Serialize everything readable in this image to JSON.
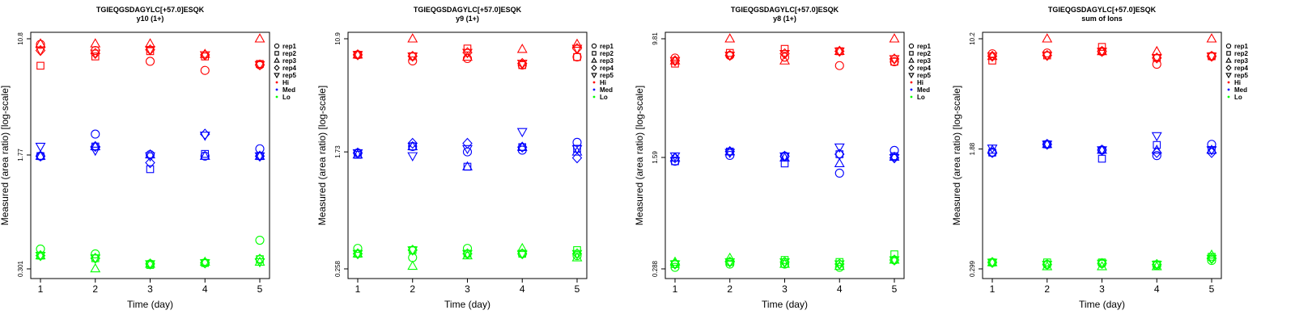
{
  "chart_data": [
    {
      "type": "scatter",
      "title": "TGIEQGSDAGYLC[+57.0]ESQK",
      "subtitle": "y10 (1+)",
      "xlabel": "Time (day)",
      "ylabel": "Measured (area ratio) [log-scale]",
      "x": [
        1,
        2,
        3,
        4,
        5
      ],
      "xticks": [
        "1",
        "2",
        "3",
        "4",
        "5"
      ],
      "yscale": "log",
      "ylim": [
        0.301,
        10.8
      ],
      "yticks": [
        "0.301",
        "1.77",
        "10.8"
      ],
      "yticks_values": [
        0.301,
        1.77,
        10.8
      ],
      "legend_position": "right",
      "series": [
        {
          "group": "Hi",
          "color": "#ff0000",
          "rep": "rep1",
          "values": [
            9.9,
            9.0,
            7.6,
            6.6,
            7.2
          ]
        },
        {
          "group": "Hi",
          "color": "#ff0000",
          "rep": "rep2",
          "values": [
            7.1,
            8.2,
            8.9,
            8.2,
            7.3
          ]
        },
        {
          "group": "Hi",
          "color": "#ff0000",
          "rep": "rep3",
          "values": [
            10.0,
            10.0,
            10.0,
            8.5,
            10.8
          ]
        },
        {
          "group": "Hi",
          "color": "#ff0000",
          "rep": "rep4",
          "values": [
            9.0,
            8.6,
            9.1,
            8.4,
            7.2
          ]
        },
        {
          "group": "Hi",
          "color": "#ff0000",
          "rep": "rep5",
          "values": [
            9.0,
            8.6,
            9.1,
            8.4,
            7.2
          ]
        },
        {
          "group": "Med",
          "color": "#0000ff",
          "rep": "rep1",
          "values": [
            1.74,
            2.45,
            1.78,
            1.74,
            1.95
          ]
        },
        {
          "group": "Med",
          "color": "#0000ff",
          "rep": "rep2",
          "values": [
            1.74,
            2.02,
            1.42,
            1.8,
            1.74
          ]
        },
        {
          "group": "Med",
          "color": "#0000ff",
          "rep": "rep3",
          "values": [
            1.74,
            2.02,
            1.78,
            1.74,
            1.74
          ]
        },
        {
          "group": "Med",
          "color": "#0000ff",
          "rep": "rep4",
          "values": [
            1.74,
            2.02,
            1.57,
            2.45,
            1.74
          ]
        },
        {
          "group": "Med",
          "color": "#0000ff",
          "rep": "rep5",
          "values": [
            2.02,
            1.9,
            1.74,
            2.4,
            1.74
          ]
        },
        {
          "group": "Lo",
          "color": "#00ff00",
          "rep": "rep1",
          "values": [
            0.41,
            0.38,
            0.325,
            0.33,
            0.47
          ]
        },
        {
          "group": "Lo",
          "color": "#00ff00",
          "rep": "rep2",
          "values": [
            0.37,
            0.355,
            0.32,
            0.33,
            0.35
          ]
        },
        {
          "group": "Lo",
          "color": "#00ff00",
          "rep": "rep3",
          "values": [
            0.37,
            0.302,
            0.325,
            0.335,
            0.335
          ]
        },
        {
          "group": "Lo",
          "color": "#00ff00",
          "rep": "rep4",
          "values": [
            0.37,
            0.355,
            0.325,
            0.33,
            0.35
          ]
        },
        {
          "group": "Lo",
          "color": "#00ff00",
          "rep": "rep5",
          "values": [
            0.37,
            0.355,
            0.325,
            0.33,
            0.335
          ]
        }
      ]
    },
    {
      "type": "scatter",
      "title": "TGIEQGSDAGYLC[+57.0]ESQK",
      "subtitle": "y9 (1+)",
      "xlabel": "Time (day)",
      "ylabel": "Measured (area ratio) [log-scale]",
      "x": [
        1,
        2,
        3,
        4,
        5
      ],
      "xticks": [
        "1",
        "2",
        "3",
        "4",
        "5"
      ],
      "yscale": "log",
      "ylim": [
        0.258,
        10.9
      ],
      "yticks": [
        "0.258",
        "1.73",
        "10.9"
      ],
      "yticks_values": [
        0.258,
        1.73,
        10.9
      ],
      "legend_position": "right",
      "series": [
        {
          "group": "Hi",
          "color": "#ff0000",
          "rep": "rep1",
          "values": [
            8.4,
            7.6,
            7.9,
            7.1,
            8.1
          ]
        },
        {
          "group": "Hi",
          "color": "#ff0000",
          "rep": "rep2",
          "values": [
            8.4,
            8.2,
            9.3,
            7.1,
            8.1
          ]
        },
        {
          "group": "Hi",
          "color": "#ff0000",
          "rep": "rep3",
          "values": [
            8.4,
            10.9,
            8.1,
            9.2,
            10.0
          ]
        },
        {
          "group": "Hi",
          "color": "#ff0000",
          "rep": "rep4",
          "values": [
            8.4,
            8.2,
            8.7,
            7.3,
            9.3
          ]
        },
        {
          "group": "Hi",
          "color": "#ff0000",
          "rep": "rep5",
          "values": [
            8.4,
            8.2,
            8.7,
            7.3,
            9.3
          ]
        },
        {
          "group": "Med",
          "color": "#0000ff",
          "rep": "rep1",
          "values": [
            1.7,
            1.89,
            1.73,
            1.78,
            2.02
          ]
        },
        {
          "group": "Med",
          "color": "#0000ff",
          "rep": "rep2",
          "values": [
            1.65,
            1.89,
            1.36,
            1.87,
            1.82
          ]
        },
        {
          "group": "Med",
          "color": "#0000ff",
          "rep": "rep3",
          "values": [
            1.65,
            1.89,
            1.36,
            1.87,
            1.73
          ]
        },
        {
          "group": "Med",
          "color": "#0000ff",
          "rep": "rep4",
          "values": [
            1.7,
            1.99,
            1.99,
            1.87,
            1.57
          ]
        },
        {
          "group": "Med",
          "color": "#0000ff",
          "rep": "rep5",
          "values": [
            1.7,
            1.62,
            1.82,
            2.4,
            1.82
          ]
        },
        {
          "group": "Lo",
          "color": "#00ff00",
          "rep": "rep1",
          "values": [
            0.36,
            0.31,
            0.36,
            0.33,
            0.32
          ]
        },
        {
          "group": "Lo",
          "color": "#00ff00",
          "rep": "rep2",
          "values": [
            0.33,
            0.35,
            0.33,
            0.33,
            0.35
          ]
        },
        {
          "group": "Lo",
          "color": "#00ff00",
          "rep": "rep3",
          "values": [
            0.33,
            0.27,
            0.32,
            0.36,
            0.31
          ]
        },
        {
          "group": "Lo",
          "color": "#00ff00",
          "rep": "rep4",
          "values": [
            0.33,
            0.35,
            0.33,
            0.33,
            0.33
          ]
        },
        {
          "group": "Lo",
          "color": "#00ff00",
          "rep": "rep5",
          "values": [
            0.33,
            0.35,
            0.33,
            0.33,
            0.33
          ]
        }
      ]
    },
    {
      "type": "scatter",
      "title": "TGIEQGSDAGYLC[+57.0]ESQK",
      "subtitle": "y8 (1+)",
      "xlabel": "Time (day)",
      "ylabel": "Measured (area ratio) [log-scale]",
      "x": [
        1,
        2,
        3,
        4,
        5
      ],
      "xticks": [
        "1",
        "2",
        "3",
        "4",
        "5"
      ],
      "yscale": "log",
      "ylim": [
        0.288,
        9.81
      ],
      "yticks": [
        "0.288",
        "1.59",
        "9.81"
      ],
      "yticks_values": [
        0.288,
        1.59,
        9.81
      ],
      "legend_position": "right",
      "series": [
        {
          "group": "Hi",
          "color": "#ff0000",
          "rep": "rep1",
          "values": [
            7.3,
            7.6,
            7.4,
            6.5,
            6.9
          ]
        },
        {
          "group": "Hi",
          "color": "#ff0000",
          "rep": "rep2",
          "values": [
            6.7,
            7.9,
            8.4,
            8.1,
            6.9
          ]
        },
        {
          "group": "Hi",
          "color": "#ff0000",
          "rep": "rep3",
          "values": [
            7.0,
            9.81,
            7.0,
            8.1,
            9.81
          ]
        },
        {
          "group": "Hi",
          "color": "#ff0000",
          "rep": "rep4",
          "values": [
            7.0,
            7.6,
            7.8,
            8.1,
            7.2
          ]
        },
        {
          "group": "Hi",
          "color": "#ff0000",
          "rep": "rep5",
          "values": [
            7.0,
            7.6,
            7.8,
            8.1,
            7.2
          ]
        },
        {
          "group": "Med",
          "color": "#0000ff",
          "rep": "rep1",
          "values": [
            1.5,
            1.64,
            1.62,
            1.25,
            1.77
          ]
        },
        {
          "group": "Med",
          "color": "#0000ff",
          "rep": "rep2",
          "values": [
            1.5,
            1.74,
            1.45,
            1.67,
            1.62
          ]
        },
        {
          "group": "Med",
          "color": "#0000ff",
          "rep": "rep3",
          "values": [
            1.58,
            1.74,
            1.58,
            1.45,
            1.6
          ]
        },
        {
          "group": "Med",
          "color": "#0000ff",
          "rep": "rep4",
          "values": [
            1.58,
            1.74,
            1.62,
            1.67,
            1.58
          ]
        },
        {
          "group": "Med",
          "color": "#0000ff",
          "rep": "rep5",
          "values": [
            1.62,
            1.71,
            1.62,
            1.86,
            1.58
          ]
        },
        {
          "group": "Lo",
          "color": "#00ff00",
          "rep": "rep1",
          "values": [
            0.295,
            0.31,
            0.31,
            0.295,
            0.33
          ]
        },
        {
          "group": "Lo",
          "color": "#00ff00",
          "rep": "rep2",
          "values": [
            0.31,
            0.32,
            0.33,
            0.32,
            0.36
          ]
        },
        {
          "group": "Lo",
          "color": "#00ff00",
          "rep": "rep3",
          "values": [
            0.32,
            0.34,
            0.31,
            0.3,
            0.33
          ]
        },
        {
          "group": "Lo",
          "color": "#00ff00",
          "rep": "rep4",
          "values": [
            0.31,
            0.32,
            0.32,
            0.31,
            0.33
          ]
        },
        {
          "group": "Lo",
          "color": "#00ff00",
          "rep": "rep5",
          "values": [
            0.31,
            0.32,
            0.32,
            0.31,
            0.33
          ]
        }
      ]
    },
    {
      "type": "scatter",
      "title": "TGIEQGSDAGYLC[+57.0]ESQK",
      "subtitle": "sum of Ions",
      "xlabel": "Time (day)",
      "ylabel": "Measured (area ratio) [log-scale]",
      "x": [
        1,
        2,
        3,
        4,
        5
      ],
      "xticks": [
        "1",
        "2",
        "3",
        "4",
        "5"
      ],
      "yscale": "log",
      "ylim": [
        0.299,
        10.2
      ],
      "yticks": [
        "0.299",
        "1.88",
        "10.2"
      ],
      "yticks_values": [
        0.299,
        1.88,
        10.2
      ],
      "legend_position": "right",
      "series": [
        {
          "group": "Hi",
          "color": "#ff0000",
          "rep": "rep1",
          "values": [
            8.1,
            8.2,
            8.4,
            6.9,
            7.8
          ]
        },
        {
          "group": "Hi",
          "color": "#ff0000",
          "rep": "rep2",
          "values": [
            7.3,
            7.9,
            9.0,
            7.6,
            7.8
          ]
        },
        {
          "group": "Hi",
          "color": "#ff0000",
          "rep": "rep3",
          "values": [
            7.8,
            10.2,
            8.4,
            8.4,
            10.2
          ]
        },
        {
          "group": "Hi",
          "color": "#ff0000",
          "rep": "rep4",
          "values": [
            7.8,
            7.9,
            8.4,
            7.6,
            7.8
          ]
        },
        {
          "group": "Hi",
          "color": "#ff0000",
          "rep": "rep5",
          "values": [
            7.8,
            7.9,
            8.4,
            7.6,
            7.8
          ]
        },
        {
          "group": "Med",
          "color": "#0000ff",
          "rep": "rep1",
          "values": [
            1.78,
            2.02,
            1.85,
            1.7,
            2.02
          ]
        },
        {
          "group": "Med",
          "color": "#0000ff",
          "rep": "rep2",
          "values": [
            1.78,
            2.02,
            1.62,
            2.0,
            1.85
          ]
        },
        {
          "group": "Med",
          "color": "#0000ff",
          "rep": "rep3",
          "values": [
            1.85,
            2.02,
            1.85,
            1.85,
            1.85
          ]
        },
        {
          "group": "Med",
          "color": "#0000ff",
          "rep": "rep4",
          "values": [
            1.78,
            2.02,
            1.85,
            1.78,
            1.78
          ]
        },
        {
          "group": "Med",
          "color": "#0000ff",
          "rep": "rep5",
          "values": [
            1.9,
            2.02,
            1.85,
            2.3,
            1.85
          ]
        },
        {
          "group": "Lo",
          "color": "#00ff00",
          "rep": "rep1",
          "values": [
            0.33,
            0.32,
            0.325,
            0.315,
            0.34
          ]
        },
        {
          "group": "Lo",
          "color": "#00ff00",
          "rep": "rep2",
          "values": [
            0.33,
            0.33,
            0.33,
            0.32,
            0.36
          ]
        },
        {
          "group": "Lo",
          "color": "#00ff00",
          "rep": "rep3",
          "values": [
            0.33,
            0.31,
            0.31,
            0.31,
            0.37
          ]
        },
        {
          "group": "Lo",
          "color": "#00ff00",
          "rep": "rep4",
          "values": [
            0.33,
            0.32,
            0.325,
            0.32,
            0.35
          ]
        },
        {
          "group": "Lo",
          "color": "#00ff00",
          "rep": "rep5",
          "values": [
            0.33,
            0.32,
            0.325,
            0.32,
            0.35
          ]
        }
      ]
    }
  ],
  "legend": {
    "reps": [
      {
        "label": "rep1",
        "shape": "circle"
      },
      {
        "label": "rep2",
        "shape": "square"
      },
      {
        "label": "rep3",
        "shape": "triangle-up"
      },
      {
        "label": "rep4",
        "shape": "diamond"
      },
      {
        "label": "rep5",
        "shape": "triangle-down"
      }
    ],
    "groups": [
      {
        "label": "Hi",
        "color": "#ff0000"
      },
      {
        "label": "Med",
        "color": "#0000ff"
      },
      {
        "label": "Lo",
        "color": "#00ff00"
      }
    ]
  }
}
